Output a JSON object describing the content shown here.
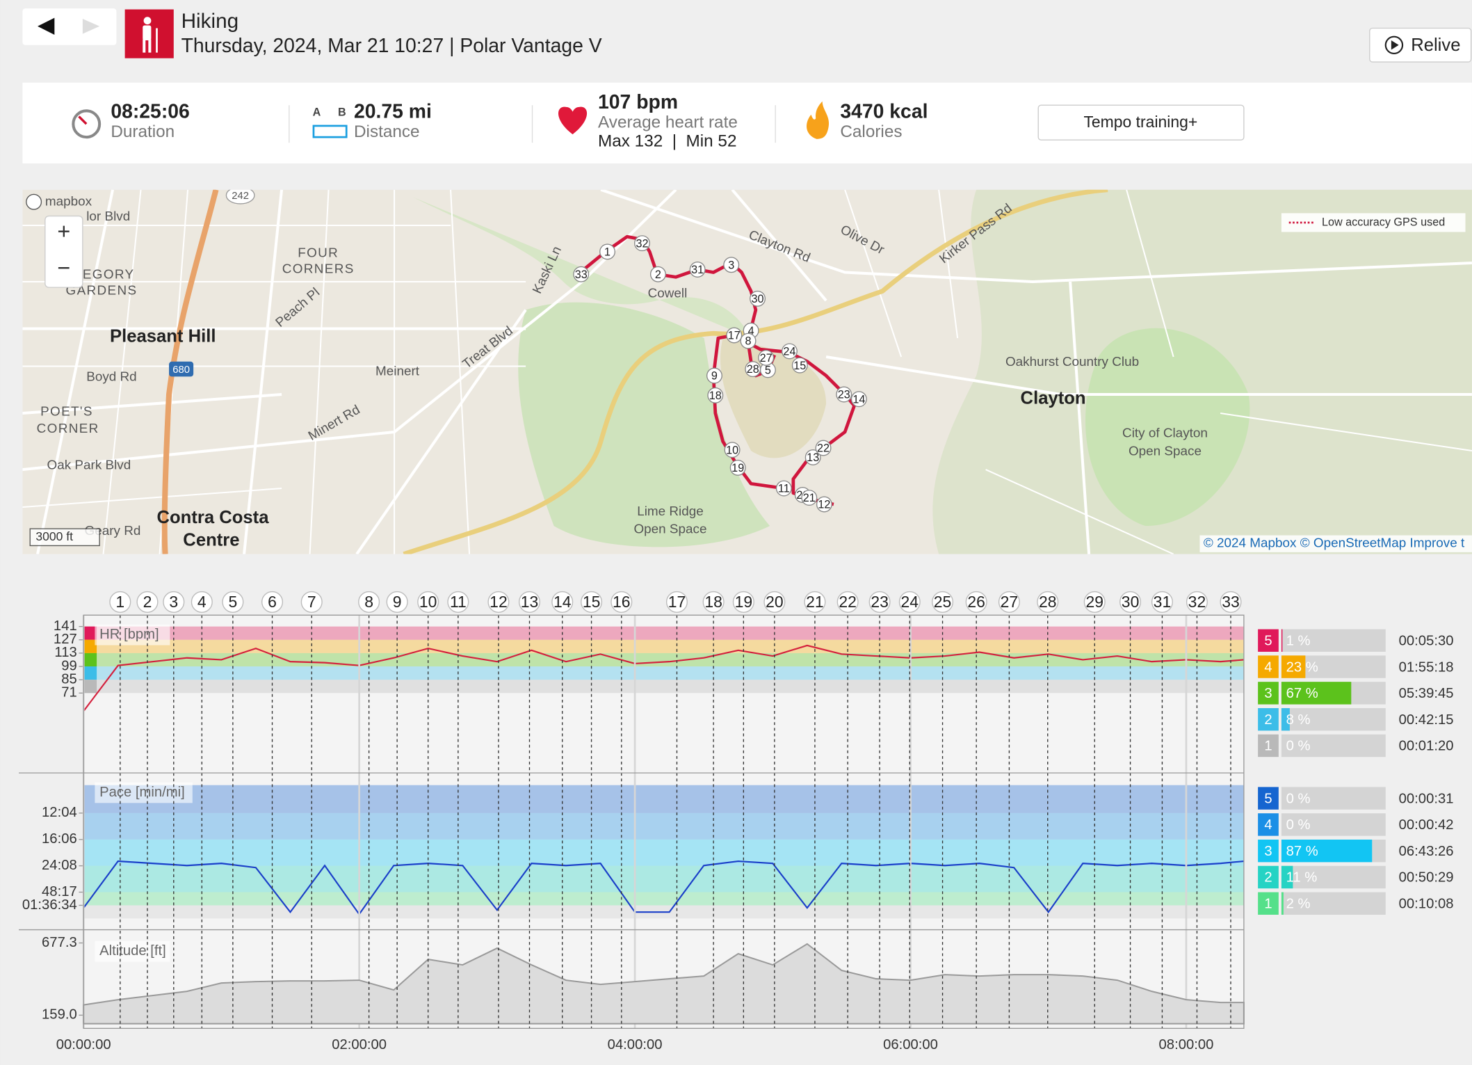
{
  "header": {
    "activity": "Hiking",
    "subtitle": "Thursday, 2024, Mar 21 10:27 | Polar Vantage V",
    "relive": "Relive"
  },
  "summary": [
    {
      "value": "08:25:06",
      "label": "Duration"
    },
    {
      "value": "20.75 mi",
      "label": "Distance",
      "icon": [
        "A",
        "B"
      ]
    },
    {
      "value": "107 bpm",
      "label": "Average heart rate",
      "extra": "Max 132  |  Min 52"
    },
    {
      "value": "3470 kcal",
      "label": "Calories"
    }
  ],
  "training_benefit": "Tempo training+",
  "map": {
    "logo": "mapbox",
    "legend": "Low accuracy GPS used",
    "scale": "3000 ft",
    "attribution": "© 2024 Mapbox © OpenStreetMap Improve t",
    "labels": [
      "Pleasant Hill",
      "Meinert",
      "Cowell",
      "Clayton",
      "Contra Costa",
      "Centre",
      "Lime Ridge",
      "Open Space",
      "City of Clayton",
      "Open Space",
      "Oakhurst Country Club",
      "FOUR",
      "CORNERS",
      "EGORY",
      "GARDENS",
      "POET'S",
      "CORNER",
      "Boyd Rd",
      "Oak Park Blvd",
      "Treat Blvd",
      "Minert Rd",
      "Peach Pl",
      "Clayton Rd",
      "Olive Dr",
      "Kirker Pass Rd",
      "Kaski Ln",
      "Geary Rd",
      "lor Blvd",
      "680",
      "242"
    ]
  },
  "laps": {
    "labels": [
      1,
      2,
      3,
      4,
      5,
      6,
      7,
      8,
      9,
      10,
      11,
      12,
      13,
      14,
      15,
      16,
      17,
      18,
      19,
      20,
      21,
      22,
      23,
      24,
      25,
      26,
      27,
      28,
      29,
      30,
      31,
      32,
      33
    ],
    "x": [
      956,
      1667,
      2354,
      3090,
      3899,
      4928,
      5958,
      7454,
      8190,
      8999,
      9783,
      10838,
      11647,
      12505,
      13265,
      14050,
      15497,
      16453,
      17238,
      18047,
      19101,
      19959,
      20793,
      21578,
      22436,
      23319,
      24177,
      25182,
      26408,
      27340,
      28173,
      29081,
      29963
    ]
  },
  "chart_data": [
    {
      "type": "line",
      "y_label": "HR [bpm]",
      "color": "#d4213d",
      "x": [
        0,
        900,
        1800,
        2700,
        3600,
        4500,
        5400,
        6300,
        7200,
        8100,
        9000,
        9900,
        10800,
        11700,
        12600,
        13500,
        14400,
        15300,
        16200,
        17100,
        18000,
        18900,
        19800,
        20700,
        21600,
        22500,
        23400,
        24300,
        25200,
        26100,
        27000,
        27900,
        28800,
        29700,
        30306
      ],
      "values": [
        52,
        100,
        104,
        108,
        106,
        118,
        104,
        103,
        100,
        108,
        118,
        110,
        104,
        116,
        104,
        112,
        102,
        104,
        108,
        116,
        110,
        121,
        112,
        110,
        108,
        110,
        114,
        108,
        112,
        106,
        110,
        104,
        106,
        104,
        106
      ],
      "xlim": [
        0,
        30306
      ],
      "ylim": [
        -12,
        148
      ],
      "yticks": [
        141,
        127,
        113,
        99,
        85,
        71
      ]
    },
    {
      "type": "line",
      "y_label": "Pace [min/mi]",
      "color": "#1a3fc9",
      "x": [
        0,
        900,
        1800,
        2700,
        3600,
        4500,
        5400,
        6300,
        7200,
        8100,
        9000,
        9900,
        10800,
        11700,
        12600,
        13500,
        14400,
        15300,
        16200,
        17100,
        18000,
        18900,
        19800,
        20700,
        21600,
        22500,
        23400,
        24300,
        25200,
        26100,
        27000,
        27900,
        28800,
        29700,
        30306
      ],
      "values": [
        0.5,
        2.7,
        2.6,
        2.5,
        2.6,
        2.4,
        0.3,
        2.5,
        0.2,
        2.5,
        2.6,
        2.5,
        0.4,
        2.6,
        2.5,
        2.6,
        0.3,
        0.3,
        2.5,
        2.7,
        2.6,
        0.5,
        2.6,
        2.5,
        2.6,
        2.5,
        2.6,
        2.4,
        0.3,
        2.6,
        2.5,
        2.6,
        2.5,
        2.6,
        2.7
      ],
      "xlim": [
        0,
        30306
      ],
      "ylim": [
        0,
        6.29
      ],
      "yticks": [
        {
          "value": 4.972,
          "label": "12:04"
        },
        {
          "value": 3.727,
          "label": "16:06"
        },
        {
          "value": 2.486,
          "label": "24:08"
        },
        {
          "value": 1.243,
          "label": "48:17"
        },
        {
          "value": 0.621,
          "label": "01:36:34"
        }
      ]
    },
    {
      "type": "area",
      "y_label": "Altitude [ft]",
      "color": "#b4b4b4",
      "x": [
        0,
        900,
        1800,
        2700,
        3600,
        4500,
        5400,
        6300,
        7200,
        8100,
        9000,
        9900,
        10800,
        11700,
        12600,
        13500,
        14400,
        15300,
        16200,
        17100,
        18000,
        18900,
        19800,
        20700,
        21600,
        22500,
        23400,
        24300,
        25200,
        26100,
        27000,
        27900,
        28800,
        29700,
        30306
      ],
      "values": [
        233,
        270,
        300,
        330,
        390,
        400,
        405,
        405,
        410,
        340,
        560,
        520,
        640,
        520,
        410,
        380,
        400,
        420,
        440,
        600,
        520,
        670,
        480,
        420,
        410,
        450,
        440,
        450,
        450,
        440,
        410,
        330,
        270,
        250,
        250
      ],
      "xlim": [
        0,
        30306
      ],
      "ylim": [
        98,
        772
      ],
      "yticks": [
        677.3,
        {
          "value": 159,
          "label": "159.0"
        }
      ],
      "xticks": [
        {
          "value": 0,
          "label": "00:00:00"
        },
        {
          "value": 7200,
          "label": "02:00:00"
        },
        {
          "value": 14400,
          "label": "04:00:00"
        },
        {
          "value": 21600,
          "label": "06:00:00"
        },
        {
          "value": 28800,
          "label": "08:00:00"
        }
      ]
    }
  ],
  "hr_zones": [
    {
      "zone": 5,
      "percent": 1,
      "label": "1 %",
      "duration": "00:05:30",
      "color": "#e0195a"
    },
    {
      "zone": 4,
      "percent": 23,
      "label": "23 %",
      "duration": "01:55:18",
      "color": "#f5a900"
    },
    {
      "zone": 3,
      "percent": 67,
      "label": "67 %",
      "duration": "05:39:45",
      "color": "#5cc21c"
    },
    {
      "zone": 2,
      "percent": 8,
      "label": "8 %",
      "duration": "00:42:15",
      "color": "#3cbde8"
    },
    {
      "zone": 1,
      "percent": 0,
      "label": "0 %",
      "duration": "00:01:20",
      "color": "#b9b9b9"
    }
  ],
  "pace_zones": [
    {
      "zone": 5,
      "percent": 0,
      "label": "0 %",
      "duration": "00:00:31",
      "color": "#1565d0"
    },
    {
      "zone": 4,
      "percent": 0,
      "label": "0 %",
      "duration": "00:00:42",
      "color": "#1b8fe6"
    },
    {
      "zone": 3,
      "percent": 87,
      "label": "87 %",
      "duration": "06:43:26",
      "color": "#12c5f3"
    },
    {
      "zone": 2,
      "percent": 11,
      "label": "11 %",
      "duration": "00:50:29",
      "color": "#25d3c4"
    },
    {
      "zone": 1,
      "percent": 2,
      "label": "2 %",
      "duration": "00:10:08",
      "color": "#55e08a"
    }
  ]
}
